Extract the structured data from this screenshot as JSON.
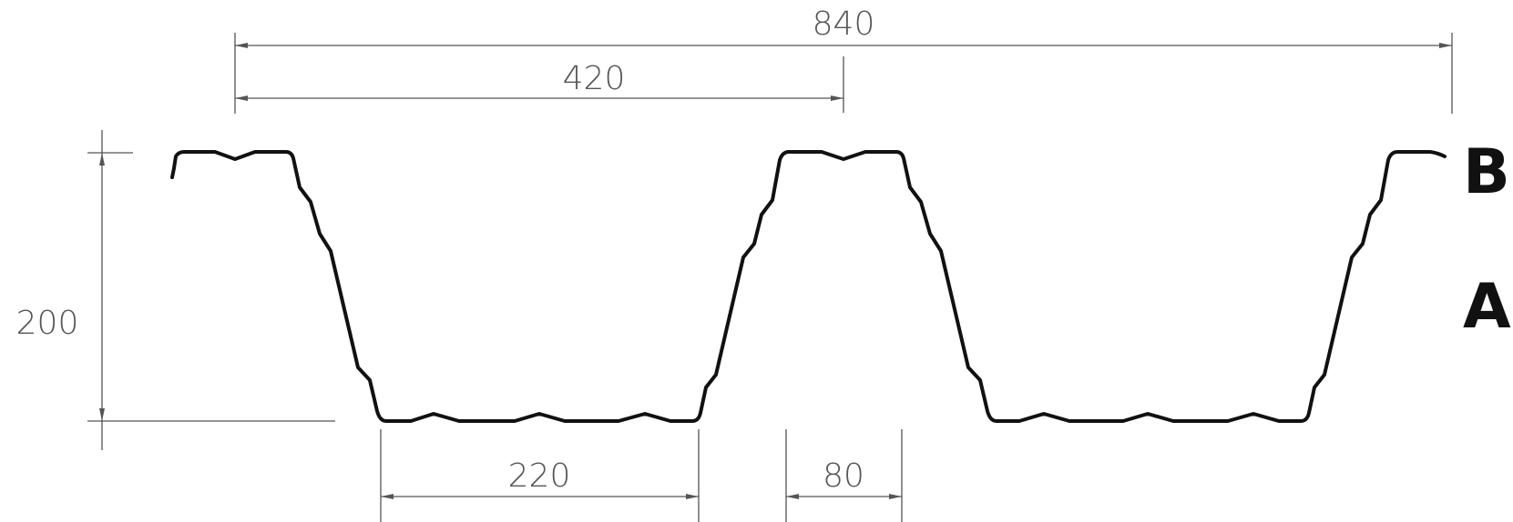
{
  "dimensions": {
    "total_width": "840",
    "half_width": "420",
    "height": "200",
    "bottom_flange": "220",
    "top_flange": "80"
  },
  "labels": {
    "top_side": "B",
    "bottom_side": "A"
  },
  "colors": {
    "profile": "#111111",
    "dimension": "#555555"
  }
}
